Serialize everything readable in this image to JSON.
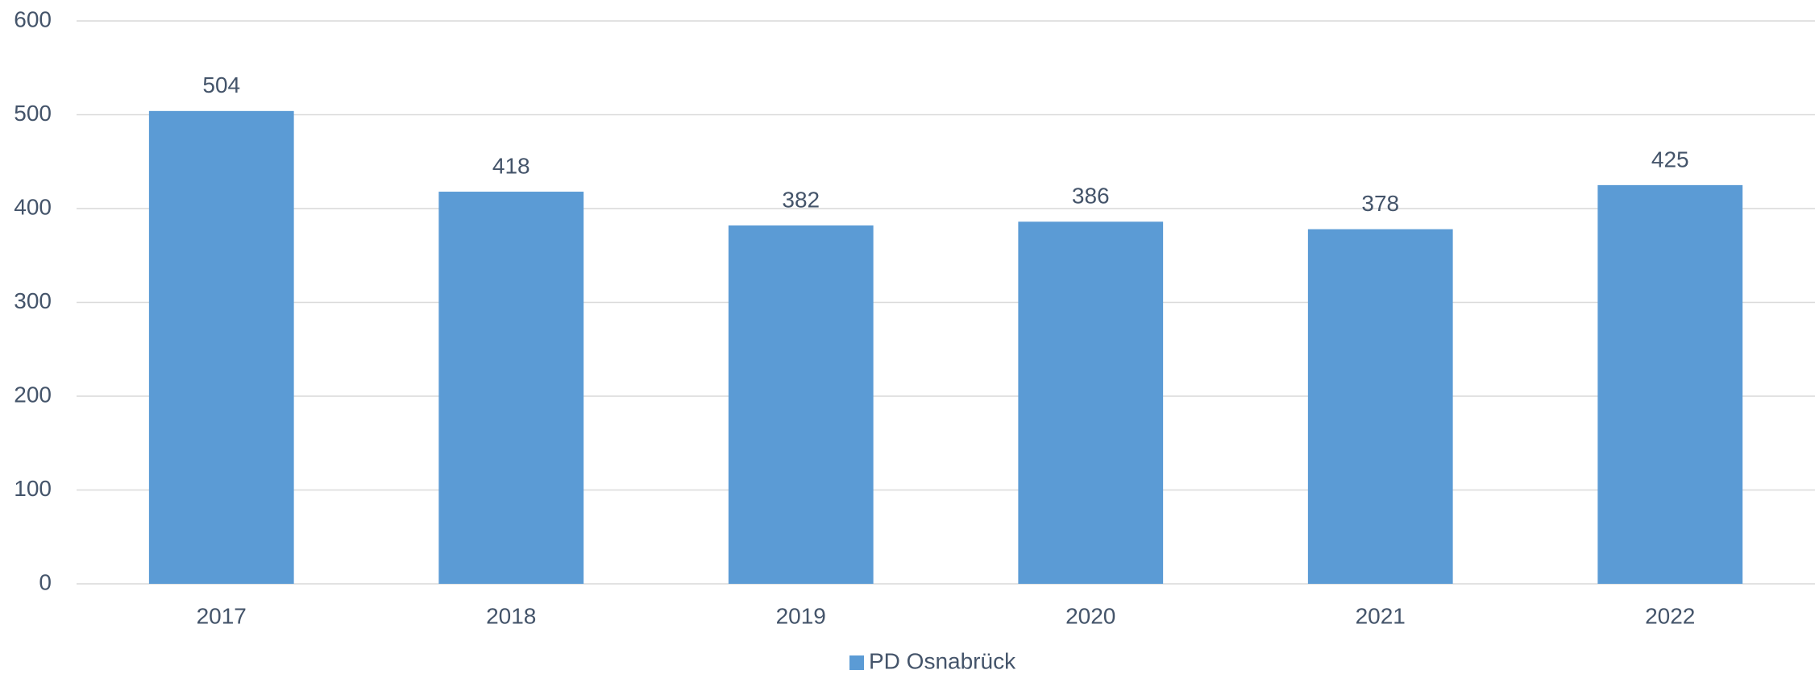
{
  "chart_data": {
    "type": "bar",
    "categories": [
      "2017",
      "2018",
      "2019",
      "2020",
      "2021",
      "2022"
    ],
    "series": [
      {
        "name": "PD Osnabrück",
        "color": "#5b9bd5",
        "values": [
          504,
          418,
          382,
          386,
          378,
          425
        ]
      }
    ],
    "ylim": [
      0,
      600
    ],
    "yticks": [
      0,
      100,
      200,
      300,
      400,
      500,
      600
    ],
    "grid": true,
    "legend": "bottom"
  }
}
